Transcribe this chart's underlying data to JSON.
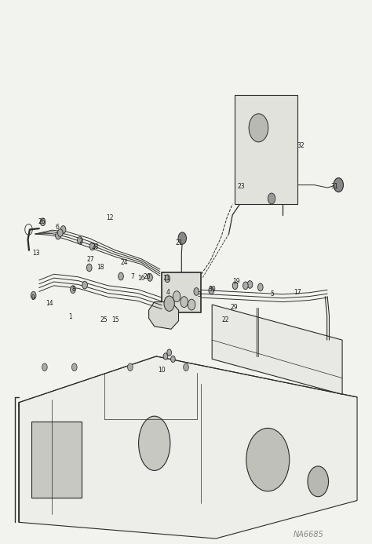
{
  "bg_color": "#f2f2ee",
  "line_color": "#2a2a2a",
  "label_color": "#1a1a1a",
  "watermark": "NA6685",
  "watermark_color": "#888888",
  "figsize": [
    4.74,
    6.93
  ],
  "dpi": 100
}
